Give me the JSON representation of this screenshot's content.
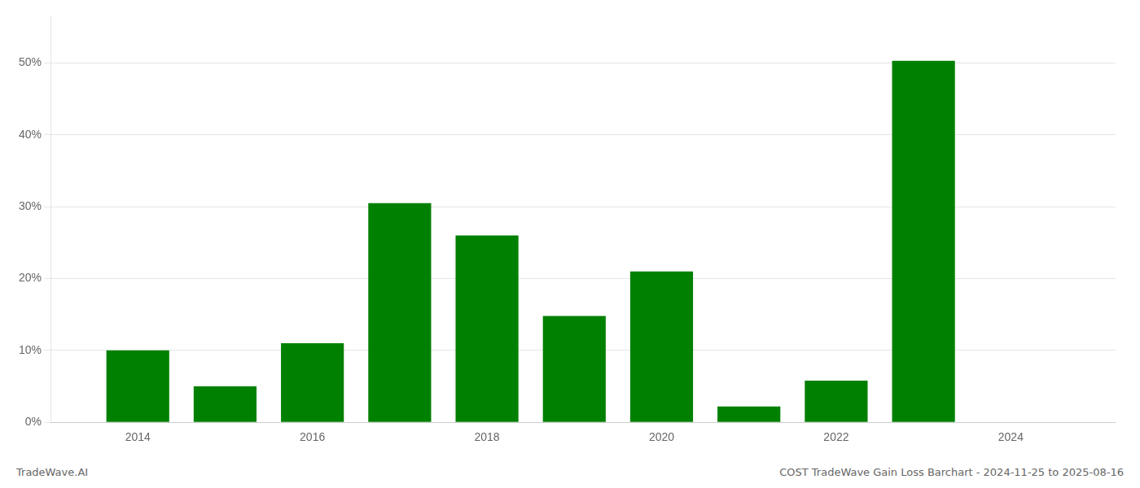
{
  "chart_data": {
    "type": "bar",
    "x": [
      2014,
      2015,
      2016,
      2017,
      2018,
      2019,
      2020,
      2021,
      2022,
      2023,
      2024
    ],
    "values": [
      0.1,
      0.05,
      0.11,
      0.305,
      0.26,
      0.148,
      0.21,
      0.022,
      0.058,
      0.503,
      0.0
    ],
    "color": "#008000",
    "xlim": [
      2013.0,
      2025.2
    ],
    "xticks": [
      2014,
      2016,
      2018,
      2020,
      2022,
      2024
    ],
    "ylim": [
      0,
      0.565
    ],
    "yticks": [
      {
        "value": 0.0,
        "label": "0%"
      },
      {
        "value": 0.1,
        "label": "10%"
      },
      {
        "value": 0.2,
        "label": "20%"
      },
      {
        "value": 0.3,
        "label": "30%"
      },
      {
        "value": 0.4,
        "label": "40%"
      },
      {
        "value": 0.5,
        "label": "50%"
      }
    ],
    "grid": true,
    "annotations": [
      "TradeWave.AI",
      "COST TradeWave Gain Loss Barchart - 2024-11-25 to 2025-08-16"
    ]
  }
}
